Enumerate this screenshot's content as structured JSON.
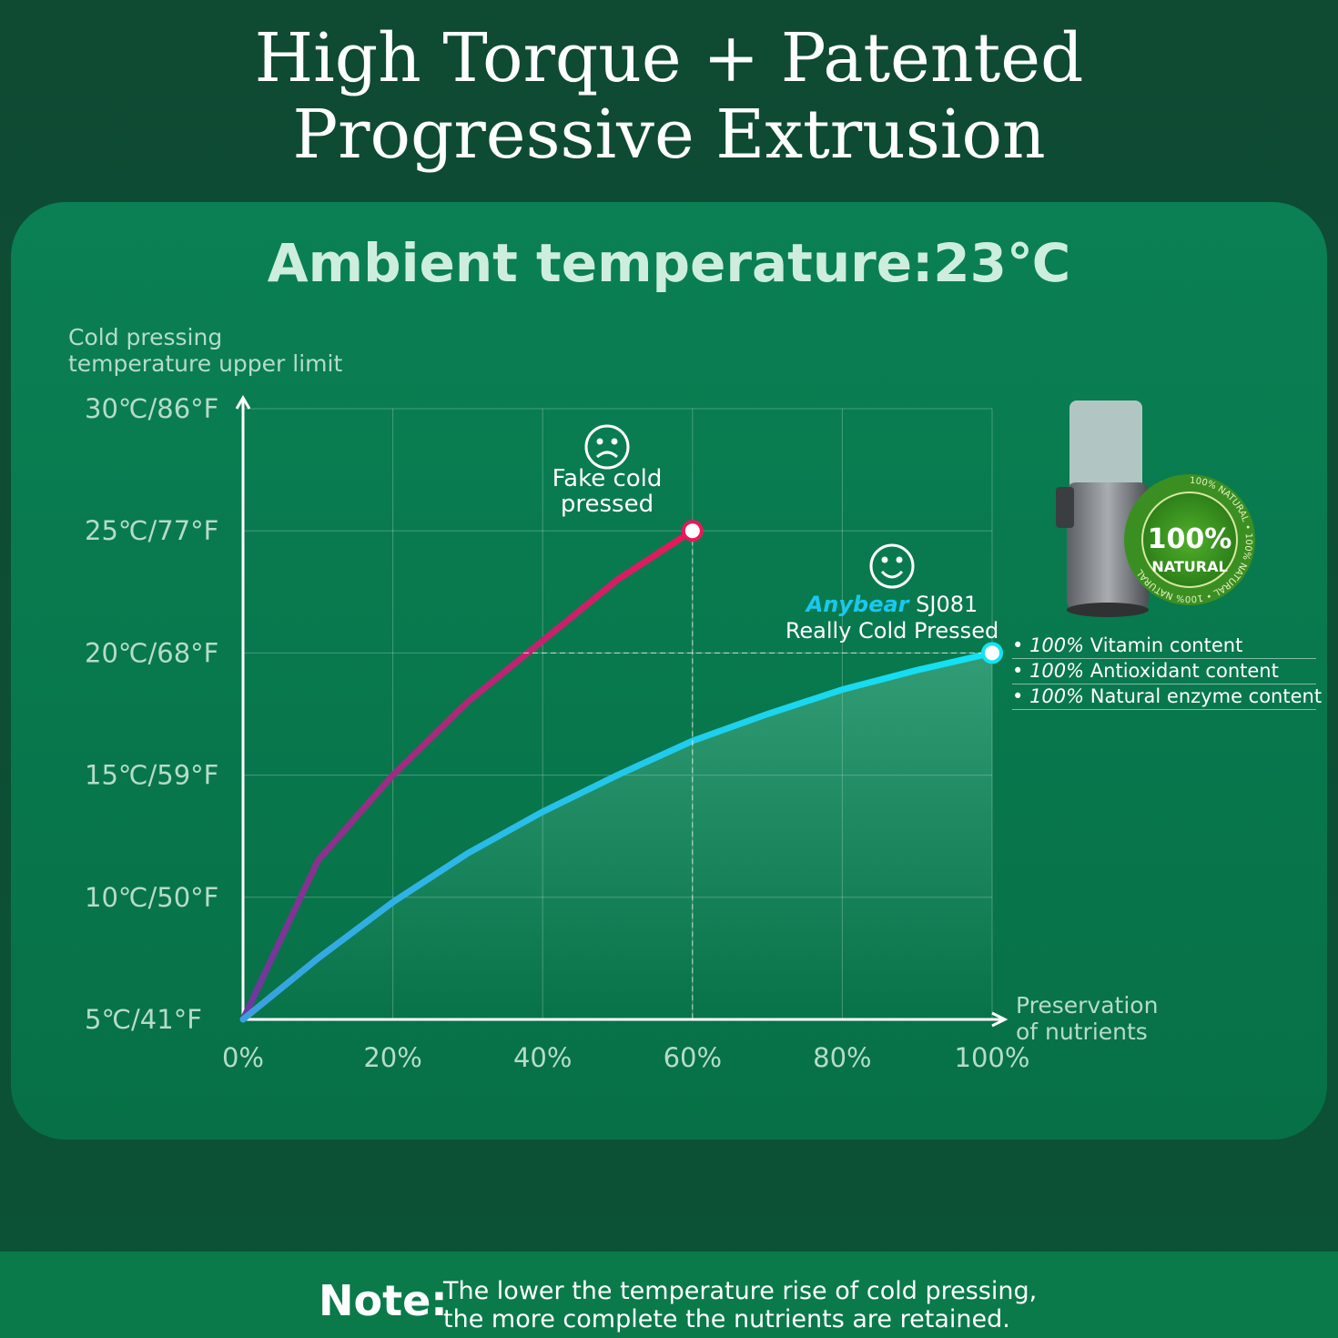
{
  "header": {
    "title_lines": [
      "High Torque + Patented",
      "Progressive Extrusion"
    ]
  },
  "chart_data": {
    "type": "line",
    "title": "Ambient temperature:23℃",
    "y_label_lines": [
      "Cold pressing",
      "temperature upper limit"
    ],
    "x_label_lines": [
      "Preservation",
      "of nutrients"
    ],
    "x": [
      0,
      10,
      20,
      30,
      40,
      50,
      60,
      70,
      80,
      90,
      100
    ],
    "series": [
      {
        "name": "Fake cold pressed",
        "colors": [
          "#6a3aa0",
          "#e8185a"
        ],
        "values": [
          5,
          11.5,
          15,
          18,
          20.5,
          23,
          25,
          null,
          null,
          null,
          null
        ]
      },
      {
        "brand": "Anybear",
        "name": "SJ081 Really Cold Pressed",
        "colors": [
          "#3a9fe0",
          "#12e4f4"
        ],
        "values": [
          5,
          7.5,
          9.8,
          11.8,
          13.5,
          15,
          16.4,
          17.5,
          18.5,
          19.3,
          20
        ]
      }
    ],
    "xlim": [
      0,
      100
    ],
    "ylim": [
      5,
      30
    ],
    "xticks": [
      {
        "value": 0,
        "label": "0%"
      },
      {
        "value": 20,
        "label": "20%"
      },
      {
        "value": 40,
        "label": "40%"
      },
      {
        "value": 60,
        "label": "60%"
      },
      {
        "value": 80,
        "label": "80%"
      },
      {
        "value": 100,
        "label": "100%"
      }
    ],
    "yticks": [
      {
        "value": 5,
        "label": "5℃/41°F"
      },
      {
        "value": 10,
        "label": "10℃/50°F"
      },
      {
        "value": 15,
        "label": "15℃/59°F"
      },
      {
        "value": 20,
        "label": "20℃/68°F"
      },
      {
        "value": 25,
        "label": "25℃/77°F"
      },
      {
        "value": 30,
        "label": "30℃/86°F"
      }
    ],
    "grid": true
  },
  "product": {
    "badge_value": "100%",
    "badge_label": "NATURAL",
    "badge_ring": "100% NATURAL",
    "bullets": [
      {
        "amount": "100%",
        "text": "Vitamin content"
      },
      {
        "amount": "100%",
        "text": "Antioxidant content"
      },
      {
        "amount": "100%",
        "text": "Natural enzyme content"
      }
    ]
  },
  "note": {
    "label": "Note:",
    "lines": [
      "The lower the temperature rise of cold pressing,",
      "the more complete the nutrients are retained."
    ]
  }
}
